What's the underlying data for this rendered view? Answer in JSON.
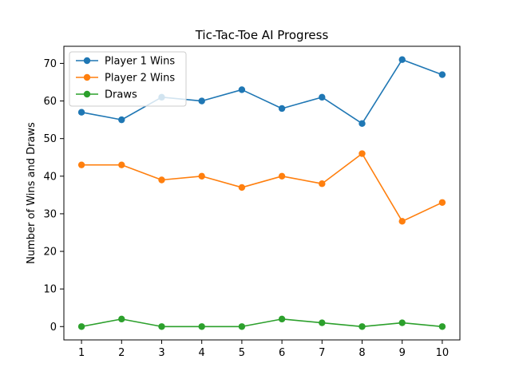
{
  "chart_data": {
    "type": "line",
    "title": "Tic-Tac-Toe AI Progress",
    "xlabel": "",
    "ylabel": "Number of Wins and Draws",
    "x": [
      1,
      2,
      3,
      4,
      5,
      6,
      7,
      8,
      9,
      10
    ],
    "xlim": [
      0.56,
      10.44
    ],
    "ylim": [
      -3.55,
      74.55
    ],
    "yticks": [
      0,
      10,
      20,
      30,
      40,
      50,
      60,
      70
    ],
    "grid": false,
    "legend": "top-left",
    "series": [
      {
        "name": "Player 1 Wins",
        "color": "#1f77b4",
        "values": [
          57,
          55,
          61,
          60,
          63,
          58,
          61,
          54,
          71,
          67
        ]
      },
      {
        "name": "Player 2 Wins",
        "color": "#ff7f0e",
        "values": [
          43,
          43,
          39,
          40,
          37,
          40,
          38,
          46,
          28,
          33
        ]
      },
      {
        "name": "Draws",
        "color": "#2ca02c",
        "values": [
          0,
          2,
          0,
          0,
          0,
          2,
          1,
          0,
          1,
          0
        ]
      }
    ]
  }
}
